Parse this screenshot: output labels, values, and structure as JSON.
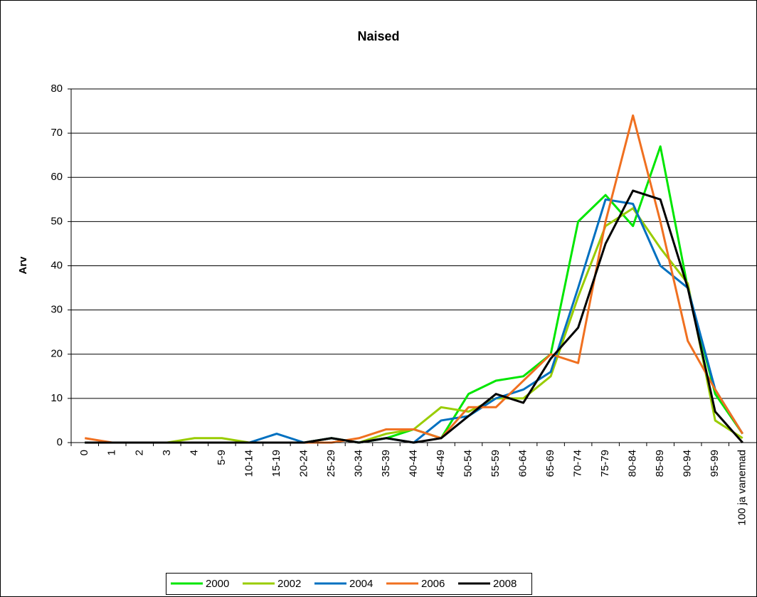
{
  "chart_data": {
    "type": "line",
    "title": "Naised",
    "y_label": "Arv",
    "categories": [
      "0",
      "1",
      "2",
      "3",
      "4",
      "5-9",
      "10-14",
      "15-19",
      "20-24",
      "25-29",
      "30-34",
      "35-39",
      "40-44",
      "45-49",
      "50-54",
      "55-59",
      "60-64",
      "65-69",
      "70-74",
      "75-79",
      "80-84",
      "85-89",
      "90-94",
      "95-99",
      "100 ja vanemad"
    ],
    "series": [
      {
        "name": "2000",
        "color": "#00e600",
        "values": [
          0,
          0,
          0,
          0,
          0,
          0,
          0,
          0,
          0,
          1,
          0,
          1,
          3,
          1,
          11,
          14,
          15,
          20,
          50,
          56,
          49,
          67,
          35,
          11,
          2
        ]
      },
      {
        "name": "2002",
        "color": "#99cc00",
        "values": [
          0,
          0,
          0,
          0,
          1,
          1,
          0,
          0,
          0,
          1,
          0,
          2,
          3,
          8,
          7,
          10,
          10,
          15,
          33,
          49,
          53,
          44,
          36,
          5,
          1
        ]
      },
      {
        "name": "2004",
        "color": "#0070c0",
        "values": [
          0,
          0,
          0,
          0,
          0,
          0,
          0,
          2,
          0,
          1,
          0,
          1,
          0,
          5,
          6,
          10,
          12,
          16,
          35,
          55,
          54,
          40,
          35,
          12,
          2
        ]
      },
      {
        "name": "2006",
        "color": "#f07020",
        "values": [
          1,
          0,
          0,
          0,
          0,
          0,
          0,
          0,
          0,
          0,
          1,
          3,
          3,
          1,
          8,
          8,
          14,
          20,
          18,
          50,
          74,
          50,
          23,
          12,
          2
        ]
      },
      {
        "name": "2008",
        "color": "#000000",
        "values": [
          0,
          0,
          0,
          0,
          0,
          0,
          0,
          0,
          0,
          1,
          0,
          1,
          0,
          1,
          6,
          11,
          9,
          19,
          26,
          45,
          57,
          55,
          35,
          7,
          0
        ]
      }
    ],
    "ylim": [
      0,
      80
    ],
    "yticks": [
      0,
      10,
      20,
      30,
      40,
      50,
      60,
      70,
      80
    ],
    "grid": true
  }
}
